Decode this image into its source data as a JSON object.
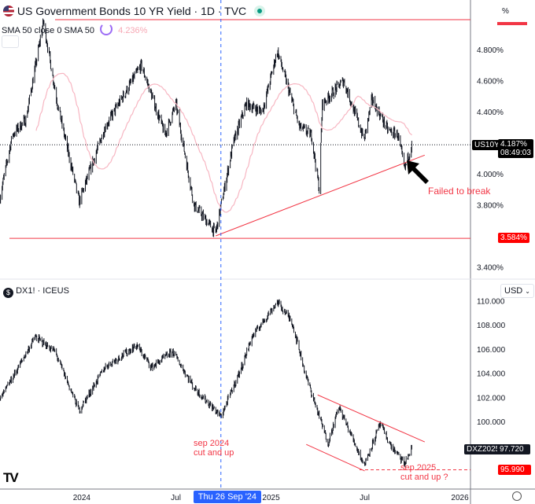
{
  "top": {
    "title": "US Government Bonds 10 YR Yield · 1D · TVC",
    "indicator": "SMA 50 close 0 SMA 50",
    "indicator_value": "4.236%",
    "unit_label": "%",
    "symbol_tag": "US10Y",
    "last_price": "4.187%",
    "countdown": "08:49:03",
    "support_price": "3.584%",
    "annotation": "Failed to break"
  },
  "bottom": {
    "title": "DX1! · ICEUS",
    "currency": "USD",
    "symbol_tag": "DXZ2025",
    "last_price": "97.720",
    "support_price": "95.990",
    "note_2024": "sep 2024\ncut and up",
    "note_2025": "sep 2025\ncut and up ?"
  },
  "time_axis": {
    "labels": [
      {
        "date": "2024-01-01",
        "text": "2024"
      },
      {
        "date": "2024-07-01",
        "text": "Jul"
      },
      {
        "date": "2025-01-01",
        "text": "2025"
      },
      {
        "date": "2025-07-01",
        "text": "Jul"
      },
      {
        "date": "2026-01-01",
        "text": "2026"
      }
    ],
    "crosshair_label": "Thu 26 Sep '24",
    "crosshair_date": "2024-09-26"
  },
  "colors": {
    "accent": "#2962ff",
    "annotation": "#f23645",
    "candle": "#131722",
    "sma": "#f7b6c2"
  },
  "chart_data": [
    {
      "type": "candlestick",
      "title": "US Government Bonds 10 YR Yield · 1D · TVC",
      "ylabel": "%",
      "yticks": [
        "4.800%",
        "4.600%",
        "4.400%",
        "4.000%",
        "3.800%",
        "3.400%"
      ],
      "ytick_values": [
        4.8,
        4.6,
        4.4,
        4.0,
        3.8,
        3.4
      ],
      "ylim": [
        3.3,
        5.1
      ],
      "close_keypoints": [
        [
          "2023-07-27",
          3.85
        ],
        [
          "2023-08-20",
          4.25
        ],
        [
          "2023-09-15",
          4.35
        ],
        [
          "2023-10-19",
          4.98
        ],
        [
          "2023-11-15",
          4.45
        ],
        [
          "2023-12-27",
          3.82
        ],
        [
          "2024-02-15",
          4.3
        ],
        [
          "2024-04-25",
          4.7
        ],
        [
          "2024-06-10",
          4.25
        ],
        [
          "2024-07-01",
          4.45
        ],
        [
          "2024-08-05",
          3.8
        ],
        [
          "2024-09-16",
          3.62
        ],
        [
          "2024-10-20",
          4.2
        ],
        [
          "2024-11-14",
          4.45
        ],
        [
          "2024-12-15",
          4.4
        ],
        [
          "2025-01-13",
          4.79
        ],
        [
          "2025-02-25",
          4.3
        ],
        [
          "2025-03-20",
          4.25
        ],
        [
          "2025-04-04",
          3.9
        ],
        [
          "2025-04-10",
          4.45
        ],
        [
          "2025-05-21",
          4.6
        ],
        [
          "2025-06-30",
          4.22
        ],
        [
          "2025-07-15",
          4.48
        ],
        [
          "2025-08-15",
          4.28
        ],
        [
          "2025-09-03",
          4.25
        ],
        [
          "2025-09-16",
          4.03
        ],
        [
          "2025-09-30",
          4.187
        ]
      ],
      "sma_period": 50,
      "horizontal_levels": [
        3.584,
        4.187
      ],
      "trendline": [
        [
          "2024-09-16",
          3.6
        ],
        [
          "2025-10-25",
          4.12
        ]
      ]
    },
    {
      "type": "candlestick",
      "title": "DX1! · ICEUS",
      "ylabel": "USD",
      "yticks": [
        "110.000",
        "108.000",
        "106.000",
        "104.000",
        "102.000",
        "100.000"
      ],
      "ytick_values": [
        110,
        108,
        106,
        104,
        102,
        100
      ],
      "ylim": [
        95,
        111
      ],
      "close_keypoints": [
        [
          "2023-07-27",
          101.8
        ],
        [
          "2023-08-25",
          104
        ],
        [
          "2023-10-03",
          107
        ],
        [
          "2023-11-10",
          105.8
        ],
        [
          "2023-12-27",
          100.9
        ],
        [
          "2024-02-15",
          104.5
        ],
        [
          "2024-04-16",
          106.3
        ],
        [
          "2024-05-15",
          104.5
        ],
        [
          "2024-06-25",
          105.8
        ],
        [
          "2024-08-05",
          102.8
        ],
        [
          "2024-09-26",
          100.4
        ],
        [
          "2024-11-05",
          104.5
        ],
        [
          "2024-11-25",
          107
        ],
        [
          "2025-01-13",
          109.9
        ],
        [
          "2025-02-10",
          108.3
        ],
        [
          "2025-03-10",
          103.7
        ],
        [
          "2025-04-21",
          98.2
        ],
        [
          "2025-05-12",
          101.2
        ],
        [
          "2025-06-30",
          96.4
        ],
        [
          "2025-07-31",
          99.8
        ],
        [
          "2025-08-20",
          98
        ],
        [
          "2025-09-16",
          96.5
        ],
        [
          "2025-09-30",
          97.72
        ]
      ],
      "horizontal_levels": [
        95.99
      ],
      "channel_upper": [
        [
          "2025-04-01",
          102.2
        ],
        [
          "2025-10-25",
          98.3
        ]
      ],
      "channel_lower": [
        [
          "2025-03-10",
          98.1
        ],
        [
          "2025-07-01",
          95.9
        ]
      ]
    }
  ]
}
